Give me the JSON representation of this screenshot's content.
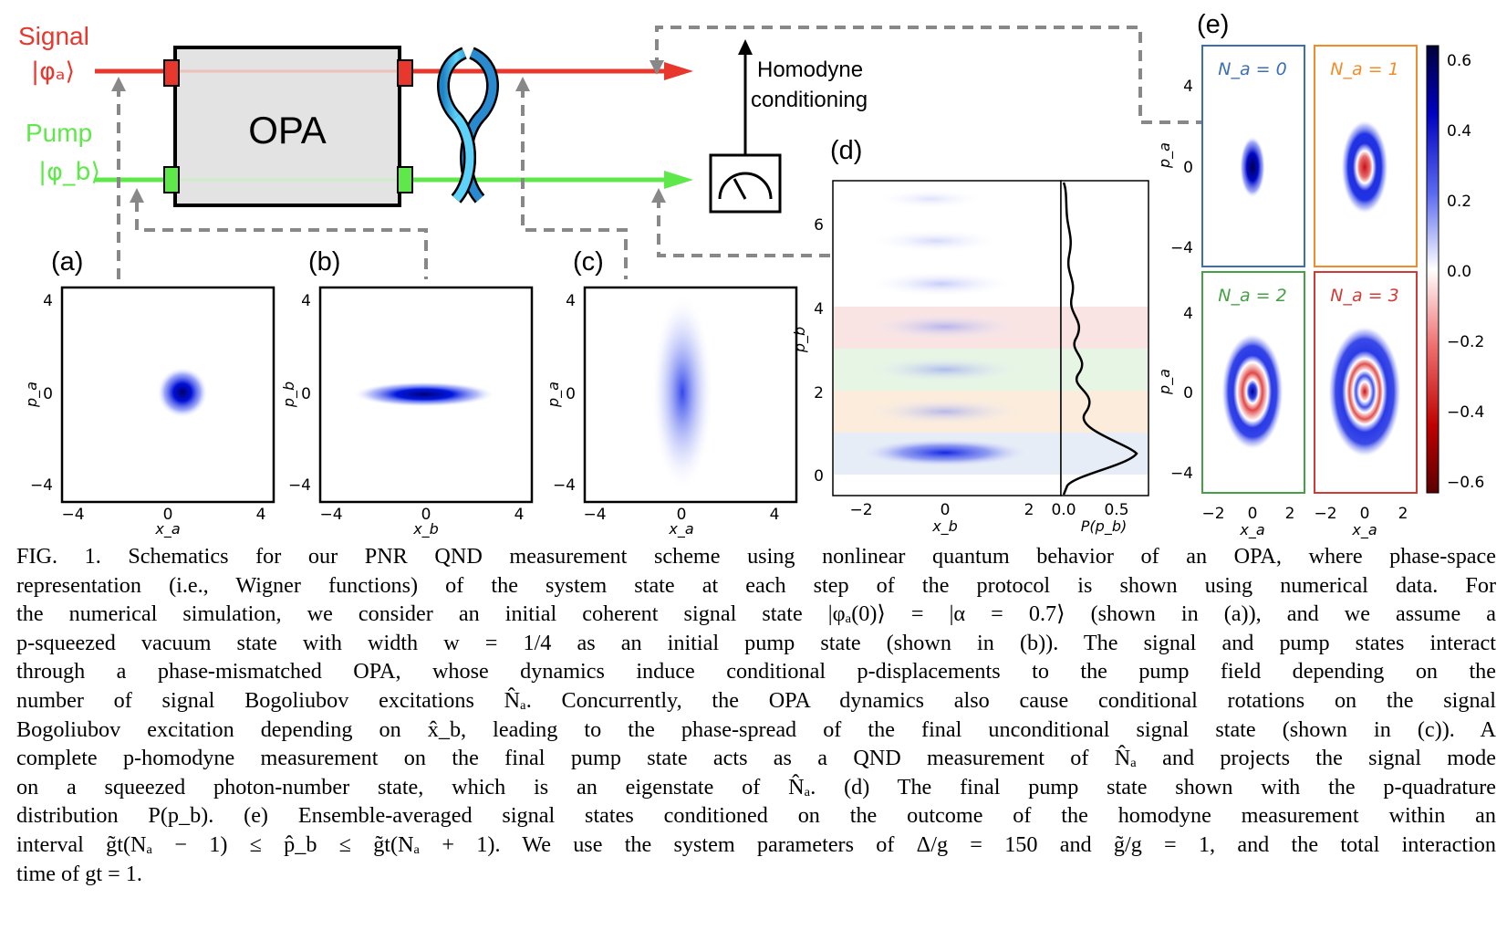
{
  "schematic": {
    "signal_label": "Signal",
    "signal_state": "|φₐ⟩",
    "pump_label": "Pump",
    "pump_state": "|φ_b⟩",
    "opa_label": "OPA",
    "homodyne_line1": "Homodyne",
    "homodyne_line2": "conditioning",
    "colors": {
      "signal": "#e8372c",
      "pump": "#5fe84a",
      "opa_fill": "#e3e3e3",
      "twist": "#4cc3f0"
    }
  },
  "panels": {
    "a": {
      "label": "(a)",
      "xlabel": "x_a",
      "ylabel": "p_a",
      "xticks": [
        "−4",
        "0",
        "4"
      ],
      "yticks": [
        "4",
        "0",
        "−4"
      ]
    },
    "b": {
      "label": "(b)",
      "xlabel": "x_b",
      "ylabel": "p_b",
      "xticks": [
        "−4",
        "0",
        "4"
      ],
      "yticks": [
        "4",
        "0",
        "−4"
      ]
    },
    "c": {
      "label": "(c)",
      "xlabel": "x_a",
      "ylabel": "p_a",
      "xticks": [
        "−4",
        "0",
        "4"
      ],
      "yticks": [
        "4",
        "0",
        "−4"
      ]
    },
    "d": {
      "label": "(d)",
      "xlabel": "x_b",
      "ylabel": "p_b",
      "xlabel2": "P(p_b)",
      "xticks": [
        "−2",
        "0",
        "2"
      ],
      "xticks2": [
        "0.0",
        "0.5"
      ],
      "yticks": [
        "6",
        "4",
        "2",
        "0"
      ]
    },
    "e": {
      "label": "(e)",
      "ylabel": "p_a",
      "xlabel": "x_a",
      "subplots": [
        {
          "title": "N_a = 0",
          "color": "#3a6fb5"
        },
        {
          "title": "N_a = 1",
          "color": "#f28c28"
        },
        {
          "title": "N_a = 2",
          "color": "#45a046"
        },
        {
          "title": "N_a = 3",
          "color": "#d23a35"
        }
      ],
      "xticks": [
        "−2",
        "0",
        "2"
      ],
      "yticks": [
        "4",
        "0",
        "−4"
      ],
      "colorbar_ticks": [
        "0.6",
        "0.4",
        "0.2",
        "0.0",
        "−0.2",
        "−0.4",
        "−0.6"
      ]
    }
  },
  "caption": {
    "lines": [
      "FIG. 1. Schematics for our PNR QND measurement scheme using nonlinear quantum behavior of an OPA, where phase-space",
      "representation (i.e., Wigner functions) of the system state at each step of the protocol is shown using numerical data. For",
      "the numerical simulation, we consider an initial coherent signal state |φₐ(0)⟩ = |α = 0.7⟩ (shown in (a)), and we assume a",
      "p-squeezed vacuum state with width w = 1/4 as an initial pump state (shown in (b)). The signal and pump states interact",
      "through a phase-mismatched OPA, whose dynamics induce conditional p-displacements to the pump field depending on the",
      "number of signal Bogoliubov excitations N̂ₐ. Concurrently, the OPA dynamics also cause conditional rotations on the signal",
      "Bogoliubov excitation depending on x̂_b, leading to the phase-spread of the final unconditional signal state (shown in (c)). A",
      "complete p-homodyne measurement on the final pump state acts as a QND measurement of N̂ₐ and projects the signal mode",
      "on a squeezed photon-number state, which is an eigenstate of N̂ₐ. (d) The final pump state shown with the p-quadrature",
      "distribution P(p_b). (e) Ensemble-averaged signal states conditioned on the outcome of the homodyne measurement within an",
      "interval g̃t(Nₐ − 1) ≤ p̂_b ≤ g̃t(Nₐ + 1). We use the system parameters of Δ/g = 150 and g̃/g = 1, and the total interaction",
      "time of gt = 1."
    ]
  }
}
